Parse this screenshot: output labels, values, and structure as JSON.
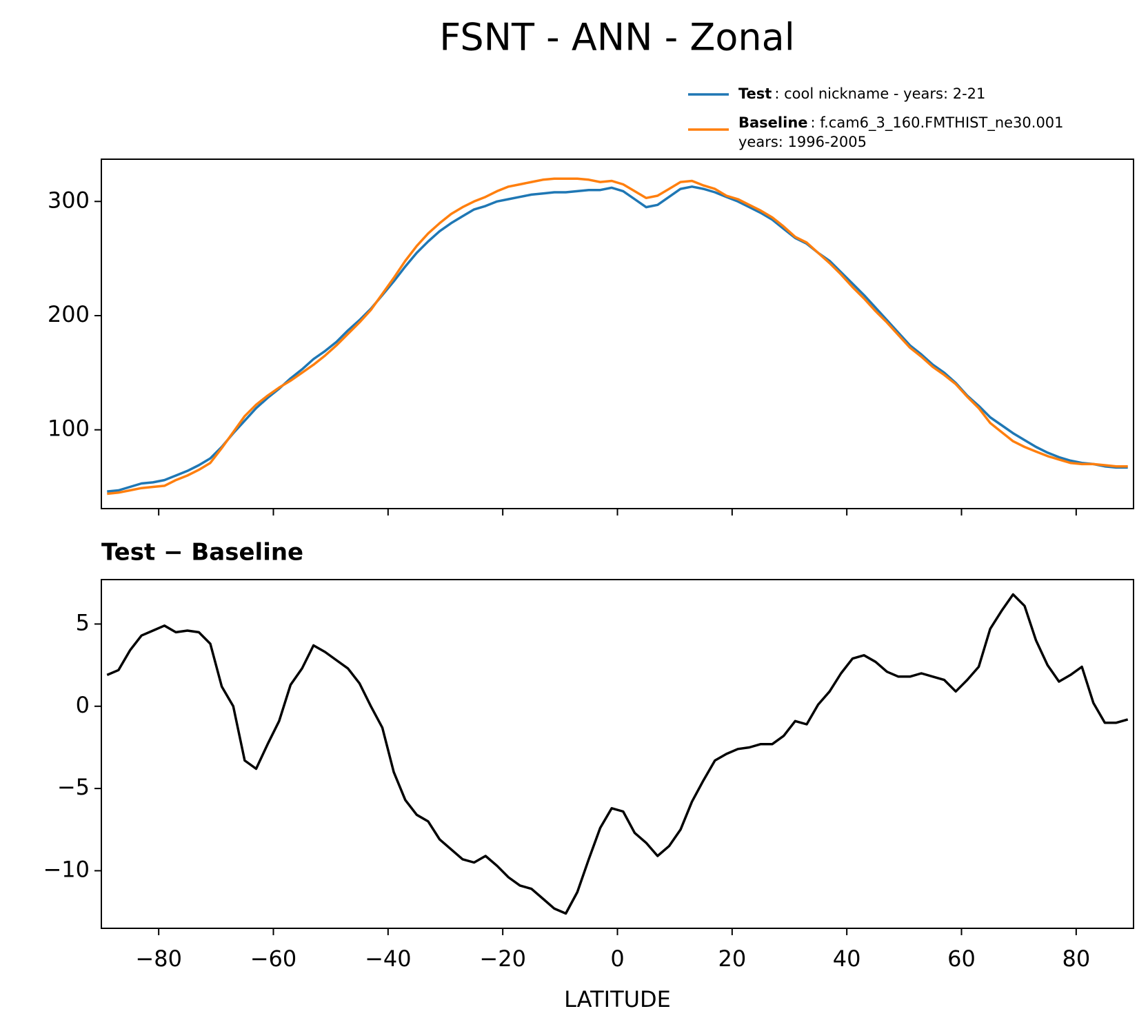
{
  "title": "FSNT - ANN - Zonal",
  "chart_data": [
    {
      "type": "line",
      "legend": "above right",
      "xtick_labels": false,
      "x": [
        -89,
        -87,
        -85,
        -83,
        -81,
        -79,
        -77,
        -75,
        -73,
        -71,
        -69,
        -67,
        -65,
        -63,
        -61,
        -59,
        -57,
        -55,
        -53,
        -51,
        -49,
        -47,
        -45,
        -43,
        -41,
        -39,
        -37,
        -35,
        -33,
        -31,
        -29,
        -27,
        -25,
        -23,
        -21,
        -19,
        -17,
        -15,
        -13,
        -11,
        -9,
        -7,
        -5,
        -3,
        -1,
        1,
        3,
        5,
        7,
        9,
        11,
        13,
        15,
        17,
        19,
        21,
        23,
        25,
        27,
        29,
        31,
        33,
        35,
        37,
        39,
        41,
        43,
        45,
        47,
        49,
        51,
        53,
        55,
        57,
        59,
        61,
        63,
        65,
        67,
        69,
        71,
        73,
        75,
        77,
        79,
        81,
        83,
        85,
        87,
        89
      ],
      "series": [
        {
          "name": "Test",
          "description": [
            ": cool nickname - years: 2-21"
          ],
          "color": "#1f77b4",
          "values": [
            46,
            47,
            50,
            53,
            54,
            56,
            60,
            64,
            69,
            75,
            85,
            97,
            108,
            119,
            128,
            136,
            145,
            153,
            162,
            169,
            177,
            187,
            196,
            206,
            218,
            230,
            243,
            255,
            265,
            274,
            281,
            287,
            293,
            296,
            300,
            302,
            304,
            306,
            307,
            308,
            308,
            309,
            310,
            310,
            312,
            309,
            302,
            295,
            297,
            304,
            311,
            313,
            311,
            308,
            304,
            300,
            295,
            290,
            284,
            276,
            268,
            263,
            255,
            248,
            238,
            228,
            218,
            207,
            196,
            185,
            174,
            166,
            157,
            150,
            141,
            130,
            121,
            111,
            104,
            97,
            91,
            85,
            80,
            76,
            73,
            71,
            70,
            68,
            67,
            67
          ]
        },
        {
          "name": "Baseline",
          "description": [
            ": f.cam6_3_160.FMTHIST_ne30.001",
            "years: 1996-2005"
          ],
          "color": "#ff7f0e",
          "values": [
            44,
            45,
            47,
            49,
            50,
            51,
            56,
            60,
            65,
            71,
            84,
            98,
            112,
            122,
            130,
            137,
            143,
            150,
            157,
            165,
            174,
            184,
            194,
            205,
            219,
            233,
            248,
            261,
            272,
            281,
            289,
            295,
            300,
            304,
            309,
            313,
            315,
            317,
            319,
            320,
            320,
            320,
            319,
            317,
            318,
            315,
            309,
            303,
            305,
            311,
            317,
            318,
            314,
            311,
            305,
            302,
            297,
            292,
            286,
            278,
            269,
            264,
            255,
            246,
            236,
            225,
            215,
            204,
            194,
            183,
            172,
            164,
            155,
            148,
            140,
            129,
            119,
            106,
            98,
            90,
            85,
            81,
            77,
            74,
            71,
            70,
            70,
            69,
            68,
            68
          ]
        }
      ],
      "xlim": [
        -90,
        90
      ],
      "xticks": [
        -80,
        -60,
        -40,
        -20,
        0,
        20,
        40,
        60,
        80
      ],
      "ylim": [
        31,
        337
      ],
      "yticks": [
        100,
        200,
        300
      ]
    },
    {
      "type": "line",
      "title": "Test − Baseline",
      "xlabel": "LATITUDE",
      "xtick_labels": true,
      "x": [
        -89,
        -87,
        -85,
        -83,
        -81,
        -79,
        -77,
        -75,
        -73,
        -71,
        -69,
        -67,
        -65,
        -63,
        -61,
        -59,
        -57,
        -55,
        -53,
        -51,
        -49,
        -47,
        -45,
        -43,
        -41,
        -39,
        -37,
        -35,
        -33,
        -31,
        -29,
        -27,
        -25,
        -23,
        -21,
        -19,
        -17,
        -15,
        -13,
        -11,
        -9,
        -7,
        -5,
        -3,
        -1,
        1,
        3,
        5,
        7,
        9,
        11,
        13,
        15,
        17,
        19,
        21,
        23,
        25,
        27,
        29,
        31,
        33,
        35,
        37,
        39,
        41,
        43,
        45,
        47,
        49,
        51,
        53,
        55,
        57,
        59,
        61,
        63,
        65,
        67,
        69,
        71,
        73,
        75,
        77,
        79,
        81,
        83,
        85,
        87,
        89
      ],
      "series": [
        {
          "color": "#000000",
          "values": [
            1.9,
            2.2,
            3.4,
            4.3,
            4.6,
            4.9,
            4.5,
            4.6,
            4.5,
            3.8,
            1.2,
            0,
            -3.3,
            -3.8,
            -2.3,
            -0.9,
            1.3,
            2.3,
            3.7,
            3.3,
            2.8,
            2.3,
            1.4,
            0,
            -1.3,
            -4.0,
            -5.7,
            -6.6,
            -7.0,
            -8.1,
            -8.7,
            -9.3,
            -9.5,
            -9.1,
            -9.7,
            -10.4,
            -10.9,
            -11.1,
            -11.7,
            -12.3,
            -12.6,
            -11.3,
            -9.3,
            -7.4,
            -6.2,
            -6.4,
            -7.7,
            -8.3,
            -9.1,
            -8.5,
            -7.5,
            -5.8,
            -4.5,
            -3.3,
            -2.9,
            -2.6,
            -2.5,
            -2.3,
            -2.3,
            -1.8,
            -0.9,
            -1.1,
            0.1,
            0.9,
            2.0,
            2.9,
            3.1,
            2.7,
            2.1,
            1.8,
            1.8,
            2.0,
            1.8,
            1.6,
            0.9,
            1.6,
            2.4,
            4.7,
            5.8,
            6.8,
            6.1,
            4.0,
            2.5,
            1.5,
            1.9,
            2.4,
            0.2,
            -1.0,
            -1.0,
            -0.8
          ]
        }
      ],
      "xlim": [
        -90,
        90
      ],
      "xticks": [
        {
          "value": -80,
          "label": "−80"
        },
        {
          "value": -60,
          "label": "−60"
        },
        {
          "value": -40,
          "label": "−40"
        },
        {
          "value": -20,
          "label": "−20"
        },
        0,
        20,
        40,
        60,
        80
      ],
      "ylim": [
        -13.5,
        7.7
      ],
      "yticks": [
        {
          "value": -10,
          "label": "−10"
        },
        {
          "value": -5,
          "label": "−5"
        },
        0,
        5
      ]
    }
  ]
}
